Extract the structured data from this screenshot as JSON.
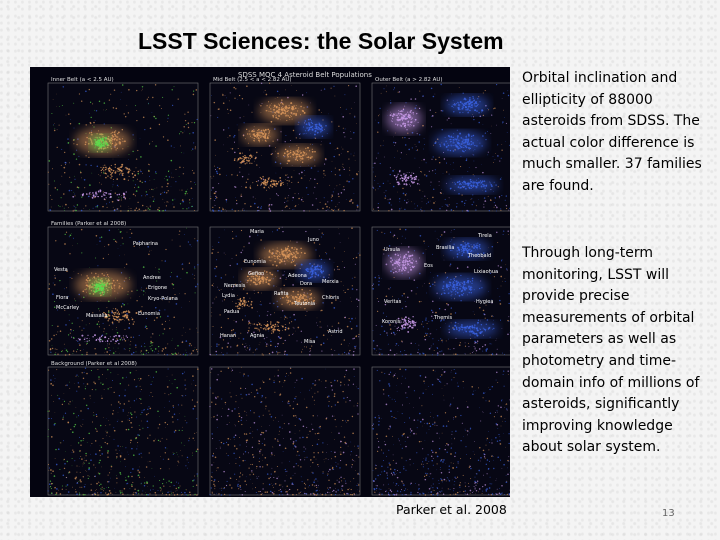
{
  "slide": {
    "title": "LSST Sciences: the Solar System",
    "paragraphs": [
      "Orbital inclination and ellipticity of 88000 asteroids from SDSS. The actual color difference is much smaller. 37 families are found.",
      "Through long-term monitoring, LSST will provide precise measurements of orbital parameters as well as photometry and time-domain info of millions of asteroids, significantly improving knowledge about solar system."
    ],
    "caption": "Parker et al. 2008",
    "page_number": "13"
  },
  "figure": {
    "header": "SDSS MOC 4 Asteroid Belt Populations",
    "panel_titles": [
      "Inner Belt (a < 2.5 AU)",
      "Mid Belt (2.5 < a < 2.82 AU)",
      "Outer Belt (a > 2.82 AU)",
      "Families (Parker et al 2008)",
      "",
      "",
      "Background (Parker et al 2008)",
      "",
      ""
    ],
    "family_labels": [
      "Papharina",
      "Vesta",
      "Andree",
      "Erigone",
      "Flora",
      "Kryo-Polana",
      "McCarley",
      "Massalia",
      "Eunomia",
      "Maria",
      "Juno",
      "Eunomia",
      "Gefion",
      "Adeona",
      "Dora",
      "Merxia",
      "Nemesis",
      "Lydia",
      "Rafita",
      "Chloris",
      "Teutonia",
      "Padua",
      "Hanan",
      "Agnia",
      "Astrid",
      "Misa",
      "Tirela",
      "Ursula",
      "Eos",
      "Brasilia",
      "Themis",
      "Koronis",
      "Hygiea",
      "Veritas",
      "Theobald",
      "Lixiaohua"
    ],
    "colors": {
      "orange": "#d8955a",
      "blue": "#3a62e0",
      "green": "#5cdc4c",
      "violet": "#c89ae8",
      "white": "#e8e8ff"
    }
  }
}
